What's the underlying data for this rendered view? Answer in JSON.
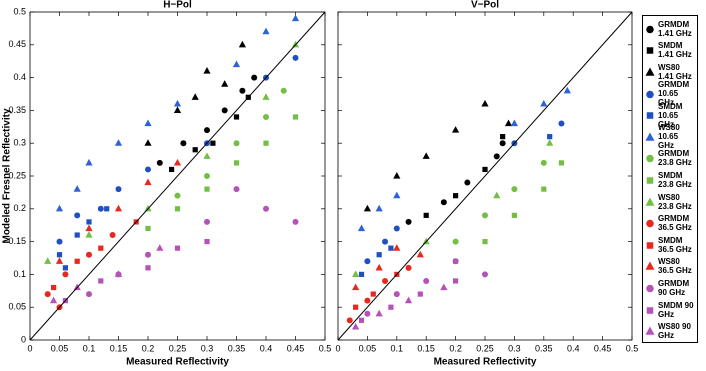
{
  "chart_data": [
    {
      "type": "scatter",
      "title": "H−Pol",
      "xlabel": "Measured Reflectivity",
      "ylabel": "Modeled Fresnel Reflectivity",
      "xlim": [
        0,
        0.5
      ],
      "ylim": [
        0,
        0.5
      ],
      "xticks": [
        0,
        0.05,
        0.1,
        0.15,
        0.2,
        0.25,
        0.3,
        0.35,
        0.4,
        0.45,
        0.5
      ],
      "yticks": [
        0,
        0.05,
        0.1,
        0.15,
        0.2,
        0.25,
        0.3,
        0.35,
        0.4,
        0.45,
        0.5
      ],
      "series": [
        {
          "name": "GRMDM 1.41 GHz",
          "color": "#000000",
          "marker": "circle",
          "x": [
            0.22,
            0.26,
            0.3,
            0.33,
            0.36,
            0.38
          ],
          "values": [
            0.27,
            0.3,
            0.32,
            0.35,
            0.38,
            0.4
          ]
        },
        {
          "name": "SMDM 1.41 GHz",
          "color": "#000000",
          "marker": "square",
          "x": [
            0.24,
            0.28,
            0.31,
            0.35,
            0.37
          ],
          "values": [
            0.26,
            0.29,
            0.3,
            0.34,
            0.37
          ]
        },
        {
          "name": "WS80 1.41 GHz",
          "color": "#000000",
          "marker": "triangle",
          "x": [
            0.2,
            0.25,
            0.3,
            0.33,
            0.36,
            0.28
          ],
          "values": [
            0.3,
            0.35,
            0.41,
            0.39,
            0.45,
            0.37
          ]
        },
        {
          "name": "GRMDM 10.65 GHz",
          "color": "#1f4fc0",
          "marker": "circle",
          "x": [
            0.05,
            0.08,
            0.12,
            0.15,
            0.2,
            0.3,
            0.4,
            0.45
          ],
          "values": [
            0.15,
            0.19,
            0.2,
            0.23,
            0.26,
            0.3,
            0.4,
            0.43
          ]
        },
        {
          "name": "SMDM 10.65 GHz",
          "color": "#1f4fc0",
          "marker": "square",
          "x": [
            0.05,
            0.08,
            0.1,
            0.13,
            0.06
          ],
          "values": [
            0.13,
            0.16,
            0.18,
            0.2,
            0.11
          ]
        },
        {
          "name": "WS80 10.65 GHz",
          "color": "#2f62d6",
          "marker": "triangle",
          "x": [
            0.05,
            0.1,
            0.15,
            0.2,
            0.25,
            0.35,
            0.4,
            0.45,
            0.08
          ],
          "values": [
            0.2,
            0.27,
            0.3,
            0.33,
            0.36,
            0.42,
            0.47,
            0.49,
            0.23
          ]
        },
        {
          "name": "GRMDM 23.8 GHz",
          "color": "#72bf44",
          "marker": "circle",
          "x": [
            0.3,
            0.35,
            0.4,
            0.43,
            0.25
          ],
          "values": [
            0.25,
            0.3,
            0.34,
            0.38,
            0.22
          ]
        },
        {
          "name": "SMDM 23.8 GHz",
          "color": "#72bf44",
          "marker": "square",
          "x": [
            0.2,
            0.25,
            0.3,
            0.35,
            0.4,
            0.45
          ],
          "values": [
            0.17,
            0.2,
            0.23,
            0.27,
            0.3,
            0.34
          ]
        },
        {
          "name": "WS80 23.8 GHz",
          "color": "#72bf44",
          "marker": "triangle",
          "x": [
            0.03,
            0.1,
            0.2,
            0.3,
            0.4,
            0.45
          ],
          "values": [
            0.12,
            0.16,
            0.2,
            0.28,
            0.37,
            0.45
          ]
        },
        {
          "name": "GRMDM 36.5 GHz",
          "color": "#e8281e",
          "marker": "circle",
          "x": [
            0.03,
            0.06,
            0.1,
            0.14,
            0.05
          ],
          "values": [
            0.07,
            0.1,
            0.13,
            0.16,
            0.05
          ]
        },
        {
          "name": "SMDM 36.5 GHz",
          "color": "#e8281e",
          "marker": "square",
          "x": [
            0.04,
            0.08,
            0.12,
            0.18
          ],
          "values": [
            0.08,
            0.12,
            0.14,
            0.18
          ]
        },
        {
          "name": "WS80 36.5 GHz",
          "color": "#e8281e",
          "marker": "triangle",
          "x": [
            0.05,
            0.1,
            0.15,
            0.2,
            0.25
          ],
          "values": [
            0.12,
            0.17,
            0.2,
            0.24,
            0.27
          ]
        },
        {
          "name": "GRMDM 90 GHz",
          "color": "#b452b8",
          "marker": "circle",
          "x": [
            0.1,
            0.15,
            0.2,
            0.3,
            0.4,
            0.45,
            0.35
          ],
          "values": [
            0.07,
            0.1,
            0.13,
            0.18,
            0.2,
            0.18,
            0.23
          ]
        },
        {
          "name": "SMDM 90 GHz",
          "color": "#b452b8",
          "marker": "square",
          "x": [
            0.06,
            0.12,
            0.2,
            0.25,
            0.3
          ],
          "values": [
            0.06,
            0.09,
            0.11,
            0.14,
            0.15
          ]
        },
        {
          "name": "WS80 90 GHz",
          "color": "#b452b8",
          "marker": "triangle",
          "x": [
            0.04,
            0.08,
            0.15,
            0.22
          ],
          "values": [
            0.06,
            0.08,
            0.1,
            0.14
          ]
        }
      ]
    },
    {
      "type": "scatter",
      "title": "V−Pol",
      "xlabel": "Measured Reflectivity",
      "xlim": [
        0,
        0.5
      ],
      "ylim": [
        0,
        0.5
      ],
      "xticks": [
        0,
        0.05,
        0.1,
        0.15,
        0.2,
        0.25,
        0.3,
        0.35,
        0.4,
        0.45,
        0.5
      ],
      "yticks": [
        0,
        0.05,
        0.1,
        0.15,
        0.2,
        0.25,
        0.3,
        0.35,
        0.4,
        0.45,
        0.5
      ],
      "series": [
        {
          "color": "#000000",
          "marker": "circle",
          "x": [
            0.12,
            0.18,
            0.22,
            0.27,
            0.28
          ],
          "values": [
            0.18,
            0.21,
            0.24,
            0.28,
            0.3
          ]
        },
        {
          "color": "#000000",
          "marker": "square",
          "x": [
            0.15,
            0.2,
            0.25,
            0.28
          ],
          "values": [
            0.19,
            0.22,
            0.26,
            0.31
          ]
        },
        {
          "color": "#000000",
          "marker": "triangle",
          "x": [
            0.05,
            0.1,
            0.15,
            0.2,
            0.25,
            0.29
          ],
          "values": [
            0.2,
            0.25,
            0.28,
            0.32,
            0.36,
            0.33
          ]
        },
        {
          "color": "#1f4fc0",
          "marker": "circle",
          "x": [
            0.05,
            0.08,
            0.1,
            0.3,
            0.38
          ],
          "values": [
            0.12,
            0.15,
            0.17,
            0.3,
            0.33
          ]
        },
        {
          "color": "#1f4fc0",
          "marker": "square",
          "x": [
            0.04,
            0.07,
            0.09,
            0.36
          ],
          "values": [
            0.1,
            0.13,
            0.14,
            0.31
          ]
        },
        {
          "color": "#2f62d6",
          "marker": "triangle",
          "x": [
            0.04,
            0.07,
            0.1,
            0.3,
            0.35,
            0.39
          ],
          "values": [
            0.17,
            0.2,
            0.22,
            0.33,
            0.36,
            0.38
          ]
        },
        {
          "color": "#72bf44",
          "marker": "circle",
          "x": [
            0.2,
            0.25,
            0.3,
            0.35
          ],
          "values": [
            0.15,
            0.19,
            0.23,
            0.27
          ]
        },
        {
          "color": "#72bf44",
          "marker": "square",
          "x": [
            0.2,
            0.25,
            0.3,
            0.35,
            0.38
          ],
          "values": [
            0.12,
            0.15,
            0.19,
            0.23,
            0.27
          ]
        },
        {
          "color": "#72bf44",
          "marker": "triangle",
          "x": [
            0.03,
            0.15,
            0.27,
            0.36
          ],
          "values": [
            0.1,
            0.15,
            0.22,
            0.3
          ]
        },
        {
          "color": "#e8281e",
          "marker": "circle",
          "x": [
            0.02,
            0.05,
            0.08,
            0.12
          ],
          "values": [
            0.03,
            0.06,
            0.09,
            0.11
          ]
        },
        {
          "color": "#e8281e",
          "marker": "square",
          "x": [
            0.03,
            0.06,
            0.1
          ],
          "values": [
            0.05,
            0.07,
            0.1
          ]
        },
        {
          "color": "#e8281e",
          "marker": "triangle",
          "x": [
            0.03,
            0.07,
            0.1,
            0.14
          ],
          "values": [
            0.08,
            0.11,
            0.14,
            0.13
          ]
        },
        {
          "color": "#b452b8",
          "marker": "circle",
          "x": [
            0.05,
            0.1,
            0.15,
            0.2,
            0.25
          ],
          "values": [
            0.04,
            0.07,
            0.09,
            0.12,
            0.1
          ]
        },
        {
          "color": "#b452b8",
          "marker": "square",
          "x": [
            0.04,
            0.09,
            0.14,
            0.2
          ],
          "values": [
            0.03,
            0.05,
            0.07,
            0.09
          ]
        },
        {
          "color": "#b452b8",
          "marker": "triangle",
          "x": [
            0.03,
            0.07,
            0.12,
            0.18
          ],
          "values": [
            0.02,
            0.04,
            0.06,
            0.08
          ]
        }
      ]
    }
  ]
}
